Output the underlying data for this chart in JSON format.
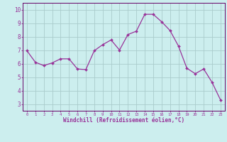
{
  "x": [
    0,
    1,
    2,
    3,
    4,
    5,
    6,
    7,
    8,
    9,
    10,
    11,
    12,
    13,
    14,
    15,
    16,
    17,
    18,
    19,
    20,
    21,
    22,
    23
  ],
  "y": [
    6.95,
    6.1,
    5.85,
    6.05,
    6.35,
    6.35,
    5.6,
    5.55,
    6.95,
    7.4,
    7.75,
    7.0,
    8.15,
    8.4,
    9.65,
    9.65,
    9.1,
    8.45,
    7.3,
    5.65,
    5.25,
    5.6,
    4.6,
    3.3
  ],
  "xlim": [
    -0.5,
    23.5
  ],
  "ylim": [
    2.5,
    10.5
  ],
  "yticks": [
    3,
    4,
    5,
    6,
    7,
    8,
    9,
    10
  ],
  "xticks": [
    0,
    1,
    2,
    3,
    4,
    5,
    6,
    7,
    8,
    9,
    10,
    11,
    12,
    13,
    14,
    15,
    16,
    17,
    18,
    19,
    20,
    21,
    22,
    23
  ],
  "xlabel": "Windchill (Refroidissement éolien,°C)",
  "line_color": "#993399",
  "marker_color": "#993399",
  "bg_color": "#cceeee",
  "grid_color": "#aacccc",
  "axis_color": "#660066",
  "tick_label_color": "#993399",
  "xlabel_color": "#993399"
}
